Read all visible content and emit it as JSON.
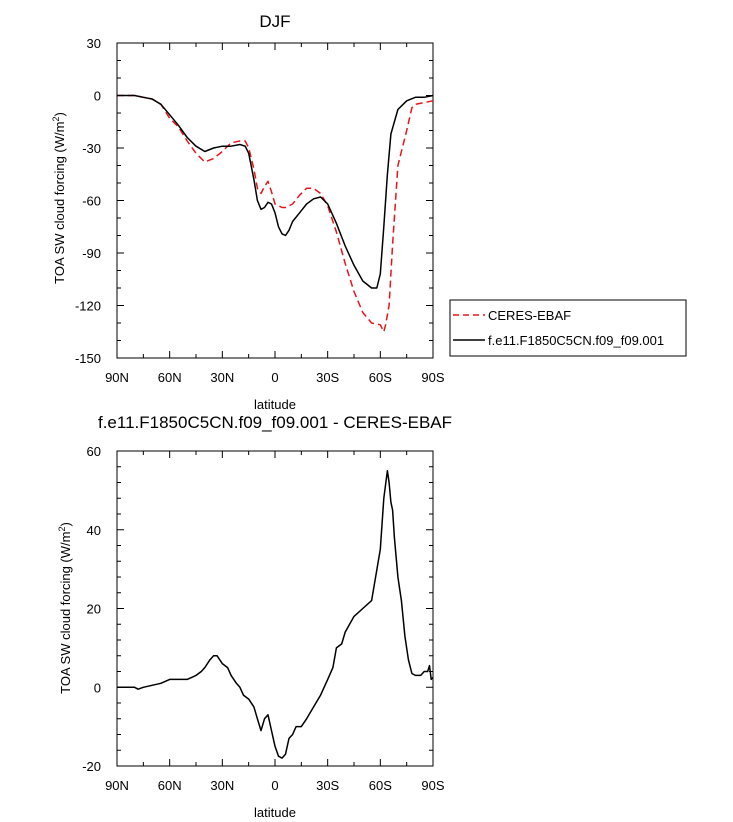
{
  "chart_data": [
    {
      "type": "line",
      "title": "DJF",
      "xlabel": "latitude",
      "ylabel": "TOA SW cloud forcing (W/m",
      "ylabel_sup": "2",
      "ylabel_close": ")",
      "xlim": [
        90,
        -90
      ],
      "ylim": [
        -150,
        30
      ],
      "xticks": [
        90,
        60,
        30,
        0,
        -30,
        -60,
        -90
      ],
      "xtick_labels": [
        "90N",
        "60N",
        "30N",
        "0",
        "30S",
        "60S",
        "90S"
      ],
      "yticks": [
        30,
        0,
        -30,
        -60,
        -90,
        -120,
        -150
      ],
      "ytick_labels": [
        "30",
        "0",
        "-30",
        "-60",
        "-90",
        "-120",
        "-150"
      ],
      "grid": false,
      "legend_position": "right",
      "series": [
        {
          "name": "CERES-EBAF",
          "color": "#e8141c",
          "dash": "dashed",
          "x": [
            90,
            85,
            80,
            75,
            70,
            65,
            60,
            55,
            50,
            45,
            40,
            35,
            30,
            25,
            20,
            17,
            15,
            12,
            10,
            8,
            6,
            4,
            2,
            0,
            -2,
            -4,
            -6,
            -10,
            -14,
            -18,
            -22,
            -26,
            -30,
            -35,
            -40,
            -45,
            -50,
            -55,
            -60,
            -62,
            -63,
            -65,
            -67,
            -70,
            -75,
            -78,
            -80,
            -85,
            -90
          ],
          "y": [
            0,
            0,
            0,
            -1,
            -2,
            -5,
            -13,
            -18,
            -26,
            -33,
            -38,
            -36,
            -32,
            -27,
            -26,
            -26,
            -30,
            -42,
            -53,
            -56,
            -52,
            -49,
            -55,
            -62,
            -63,
            -64,
            -64,
            -62,
            -57,
            -53,
            -53,
            -56,
            -63,
            -78,
            -96,
            -112,
            -124,
            -130,
            -131,
            -135,
            -131,
            -120,
            -85,
            -40,
            -20,
            -7,
            -5,
            -4,
            -3
          ]
        },
        {
          "name": "f.e11.F1850C5CN.f09_f09.001",
          "color": "#000000",
          "dash": "solid",
          "x": [
            90,
            85,
            80,
            75,
            70,
            65,
            60,
            55,
            50,
            45,
            40,
            35,
            30,
            25,
            20,
            17,
            15,
            12,
            10,
            8,
            6,
            4,
            2,
            0,
            -2,
            -4,
            -6,
            -8,
            -10,
            -14,
            -18,
            -22,
            -26,
            -30,
            -35,
            -40,
            -45,
            -50,
            -55,
            -58,
            -60,
            -62,
            -64,
            -66,
            -70,
            -75,
            -80,
            -85,
            -90
          ],
          "y": [
            0,
            0,
            0,
            -1,
            -2,
            -5,
            -11,
            -17,
            -24,
            -29,
            -32,
            -30,
            -29,
            -29,
            -28,
            -29,
            -33,
            -48,
            -60,
            -65,
            -64,
            -61,
            -62,
            -67,
            -75,
            -79,
            -80,
            -77,
            -72,
            -67,
            -62,
            -59,
            -58,
            -62,
            -73,
            -86,
            -97,
            -106,
            -110,
            -110,
            -102,
            -75,
            -45,
            -22,
            -8,
            -3,
            -1,
            -1,
            0
          ]
        }
      ]
    },
    {
      "type": "line",
      "title": "f.e11.F1850C5CN.f09_f09.001 - CERES-EBAF",
      "xlabel": "latitude",
      "ylabel": "TOA SW cloud forcing (W/m",
      "ylabel_sup": "2",
      "ylabel_close": ")",
      "xlim": [
        90,
        -90
      ],
      "ylim": [
        -20,
        60
      ],
      "xticks": [
        90,
        60,
        30,
        0,
        -30,
        -60,
        -90
      ],
      "xtick_labels": [
        "90N",
        "60N",
        "30N",
        "0",
        "30S",
        "60S",
        "90S"
      ],
      "yticks": [
        60,
        40,
        20,
        0,
        -20
      ],
      "ytick_labels": [
        "60",
        "40",
        "20",
        "0",
        "-20"
      ],
      "grid": false,
      "series": [
        {
          "color": "#000000",
          "dash": "solid",
          "x": [
            90,
            85,
            80,
            78,
            75,
            70,
            65,
            60,
            55,
            50,
            45,
            42,
            40,
            37,
            35,
            33,
            30,
            27,
            25,
            22,
            20,
            18,
            15,
            12,
            10,
            8,
            6,
            4,
            2,
            0,
            -2,
            -4,
            -6,
            -8,
            -10,
            -12,
            -15,
            -18,
            -22,
            -26,
            -30,
            -33,
            -35,
            -38,
            -40,
            -45,
            -50,
            -55,
            -60,
            -62,
            -64,
            -65,
            -66,
            -67,
            -68,
            -70,
            -72,
            -74,
            -76,
            -78,
            -80,
            -83,
            -85,
            -87,
            -88,
            -89,
            -90
          ],
          "y": [
            0,
            0,
            0,
            -0.5,
            0,
            0.5,
            1,
            2,
            2,
            2,
            3,
            4,
            5,
            7,
            8,
            8,
            6,
            5,
            3,
            1,
            0,
            -2,
            -3,
            -5,
            -8,
            -11,
            -8,
            -7,
            -11,
            -15,
            -17.5,
            -18,
            -17,
            -13,
            -12,
            -10,
            -10,
            -8,
            -5,
            -2,
            2,
            5,
            10,
            11,
            14,
            18,
            20,
            22,
            35,
            48,
            55,
            52,
            47,
            45,
            38,
            28,
            22,
            13,
            7,
            3.5,
            3,
            3,
            4,
            4,
            5.5,
            2,
            2.5
          ]
        }
      ]
    }
  ]
}
